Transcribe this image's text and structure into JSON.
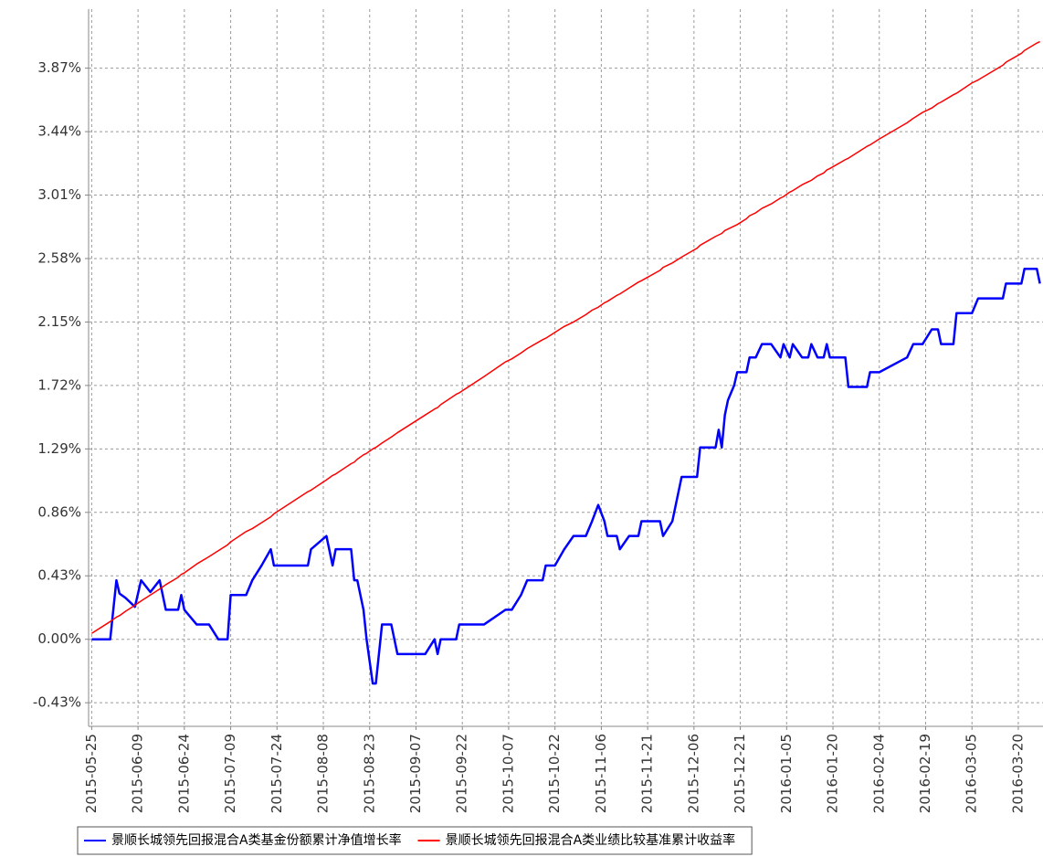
{
  "chart_data": {
    "type": "line",
    "x": [
      "2015-05-25",
      "2015-05-31",
      "2015-06-02",
      "2015-06-03",
      "2015-06-05",
      "2015-06-08",
      "2015-06-10",
      "2015-06-13",
      "2015-06-16",
      "2015-06-18",
      "2015-06-22",
      "2015-06-23",
      "2015-06-24",
      "2015-06-28",
      "2015-07-02",
      "2015-07-05",
      "2015-07-08",
      "2015-07-09",
      "2015-07-14",
      "2015-07-16",
      "2015-07-19",
      "2015-07-22",
      "2015-07-23",
      "2015-08-03",
      "2015-08-04",
      "2015-08-09",
      "2015-08-11",
      "2015-08-12",
      "2015-08-17",
      "2015-08-18",
      "2015-08-19",
      "2015-08-21",
      "2015-08-22",
      "2015-08-24",
      "2015-08-25",
      "2015-08-27",
      "2015-08-30",
      "2015-09-01",
      "2015-09-10",
      "2015-09-13",
      "2015-09-14",
      "2015-09-15",
      "2015-09-20",
      "2015-09-21",
      "2015-09-29",
      "2015-10-06",
      "2015-10-08",
      "2015-10-11",
      "2015-10-13",
      "2015-10-18",
      "2015-10-19",
      "2015-10-22",
      "2015-10-25",
      "2015-10-28",
      "2015-11-01",
      "2015-11-03",
      "2015-11-05",
      "2015-11-07",
      "2015-11-08",
      "2015-11-11",
      "2015-11-12",
      "2015-11-15",
      "2015-11-18",
      "2015-11-19",
      "2015-11-25",
      "2015-11-26",
      "2015-11-29",
      "2015-12-02",
      "2015-12-07",
      "2015-12-08",
      "2015-12-13",
      "2015-12-14",
      "2015-12-15",
      "2015-12-16",
      "2015-12-17",
      "2015-12-19",
      "2015-12-20",
      "2015-12-23",
      "2015-12-24",
      "2015-12-26",
      "2015-12-28",
      "2015-12-31",
      "2016-01-03",
      "2016-01-04",
      "2016-01-06",
      "2016-01-07",
      "2016-01-10",
      "2016-01-12",
      "2016-01-13",
      "2016-01-15",
      "2016-01-17",
      "2016-01-18",
      "2016-01-19",
      "2016-01-24",
      "2016-01-25",
      "2016-01-31",
      "2016-02-01",
      "2016-02-04",
      "2016-02-13",
      "2016-02-15",
      "2016-02-18",
      "2016-02-21",
      "2016-02-23",
      "2016-02-24",
      "2016-02-28",
      "2016-02-29",
      "2016-03-05",
      "2016-03-07",
      "2016-03-15",
      "2016-03-16",
      "2016-03-21",
      "2016-03-22",
      "2016-03-26",
      "2016-03-27"
    ],
    "series": [
      {
        "name": "景顺长城领先回报混合A类基金份额累计净值增长率",
        "color": "#0000ff",
        "width": 2.5,
        "values": [
          0.0,
          0.0,
          0.4,
          0.31,
          0.28,
          0.22,
          0.4,
          0.32,
          0.4,
          0.2,
          0.2,
          0.3,
          0.2,
          0.1,
          0.1,
          0.0,
          0.0,
          0.3,
          0.3,
          0.4,
          0.5,
          0.61,
          0.5,
          0.5,
          0.61,
          0.7,
          0.5,
          0.61,
          0.61,
          0.4,
          0.4,
          0.2,
          0.0,
          -0.3,
          -0.3,
          0.1,
          0.1,
          -0.1,
          -0.1,
          0.0,
          -0.1,
          0.0,
          0.0,
          0.1,
          0.1,
          0.2,
          0.2,
          0.3,
          0.4,
          0.4,
          0.5,
          0.5,
          0.61,
          0.7,
          0.7,
          0.8,
          0.91,
          0.8,
          0.7,
          0.7,
          0.61,
          0.7,
          0.7,
          0.8,
          0.8,
          0.7,
          0.8,
          1.1,
          1.1,
          1.3,
          1.3,
          1.42,
          1.3,
          1.52,
          1.62,
          1.72,
          1.81,
          1.81,
          1.91,
          1.91,
          2.0,
          2.0,
          1.91,
          2.0,
          1.91,
          2.0,
          1.91,
          1.91,
          2.0,
          1.91,
          1.91,
          2.0,
          1.91,
          1.91,
          1.71,
          1.71,
          1.81,
          1.81,
          1.91,
          2.0,
          2.0,
          2.1,
          2.1,
          2.0,
          2.0,
          2.21,
          2.21,
          2.31,
          2.31,
          2.41,
          2.41,
          2.51,
          2.51,
          2.41
        ]
      },
      {
        "name": "景顺长城领先回报混合A类业绩比较基准累计收益率",
        "color": "#ff0000",
        "width": 1.5,
        "values": [
          0.04,
          0.12,
          0.15,
          0.16,
          0.19,
          0.23,
          0.26,
          0.3,
          0.34,
          0.37,
          0.42,
          0.44,
          0.45,
          0.51,
          0.56,
          0.6,
          0.64,
          0.66,
          0.73,
          0.75,
          0.79,
          0.83,
          0.85,
          1.0,
          1.01,
          1.08,
          1.11,
          1.12,
          1.19,
          1.2,
          1.22,
          1.25,
          1.26,
          1.29,
          1.3,
          1.33,
          1.37,
          1.4,
          1.52,
          1.56,
          1.57,
          1.59,
          1.66,
          1.67,
          1.78,
          1.88,
          1.9,
          1.94,
          1.97,
          2.03,
          2.04,
          2.08,
          2.12,
          2.15,
          2.2,
          2.23,
          2.25,
          2.28,
          2.29,
          2.33,
          2.34,
          2.38,
          2.42,
          2.43,
          2.5,
          2.52,
          2.55,
          2.59,
          2.65,
          2.67,
          2.73,
          2.74,
          2.75,
          2.77,
          2.78,
          2.8,
          2.81,
          2.85,
          2.87,
          2.89,
          2.92,
          2.95,
          2.99,
          3.0,
          3.03,
          3.04,
          3.08,
          3.1,
          3.11,
          3.14,
          3.16,
          3.18,
          3.19,
          3.25,
          3.26,
          3.34,
          3.35,
          3.39,
          3.5,
          3.53,
          3.57,
          3.6,
          3.63,
          3.64,
          3.69,
          3.7,
          3.77,
          3.79,
          3.89,
          3.91,
          3.97,
          3.99,
          4.04,
          4.05
        ]
      }
    ],
    "xlim": [
      "2015-05-24",
      "2016-03-28"
    ],
    "xticks": [
      "2015-05-25",
      "2015-06-09",
      "2015-06-24",
      "2015-07-09",
      "2015-07-24",
      "2015-08-08",
      "2015-08-23",
      "2015-09-07",
      "2015-09-22",
      "2015-10-07",
      "2015-10-22",
      "2015-11-06",
      "2015-11-21",
      "2015-12-06",
      "2015-12-21",
      "2016-01-05",
      "2016-01-20",
      "2016-02-04",
      "2016-02-19",
      "2016-03-05",
      "2016-03-20"
    ],
    "ylim": [
      -0.59,
      4.27
    ],
    "yticks": [
      {
        "value": -0.43,
        "label": "-0.43%"
      },
      {
        "value": 0,
        "label": "0.00%"
      },
      {
        "value": 0.43,
        "label": "0.43%"
      },
      {
        "value": 0.86,
        "label": "0.86%"
      },
      {
        "value": 1.29,
        "label": "1.29%"
      },
      {
        "value": 1.72,
        "label": "1.72%"
      },
      {
        "value": 2.15,
        "label": "2.15%"
      },
      {
        "value": 2.58,
        "label": "2.58%"
      },
      {
        "value": 3.01,
        "label": "3.01%"
      },
      {
        "value": 3.44,
        "label": "3.44%"
      },
      {
        "value": 3.87,
        "label": "3.87%"
      }
    ],
    "grid": true,
    "legend": "bottom"
  }
}
